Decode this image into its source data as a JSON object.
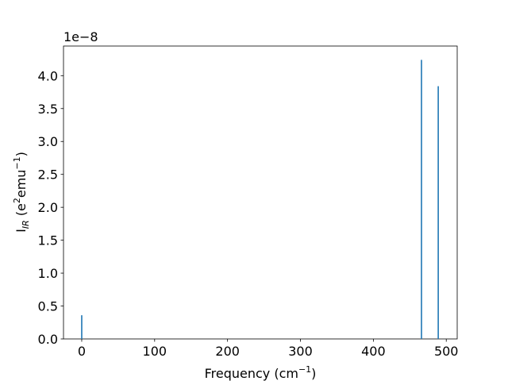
{
  "chart_data": {
    "type": "bar",
    "x": [
      0,
      466,
      489
    ],
    "values": [
      0.36,
      4.24,
      3.84
    ],
    "color": "#1f77b4",
    "offset_text": "1e−8",
    "xlabel": [
      "Frequency (cm",
      "−1",
      ")"
    ],
    "ylabel": [
      "I",
      "IR",
      " (e",
      "2",
      "emu",
      "−1",
      ")"
    ],
    "xlim": [
      -25,
      515
    ],
    "xticks": [
      0,
      100,
      200,
      300,
      400,
      500
    ],
    "ylim": [
      0,
      4.45
    ],
    "yticks": [
      {
        "value": 0,
        "label": "0.0"
      },
      {
        "value": 0.5,
        "label": "0.5"
      },
      {
        "value": 1,
        "label": "1.0"
      },
      {
        "value": 1.5,
        "label": "1.5"
      },
      {
        "value": 2,
        "label": "2.0"
      },
      {
        "value": 2.5,
        "label": "2.5"
      },
      {
        "value": 3,
        "label": "3.0"
      },
      {
        "value": 3.5,
        "label": "3.5"
      },
      {
        "value": 4,
        "label": "4.0"
      }
    ],
    "grid": false
  }
}
